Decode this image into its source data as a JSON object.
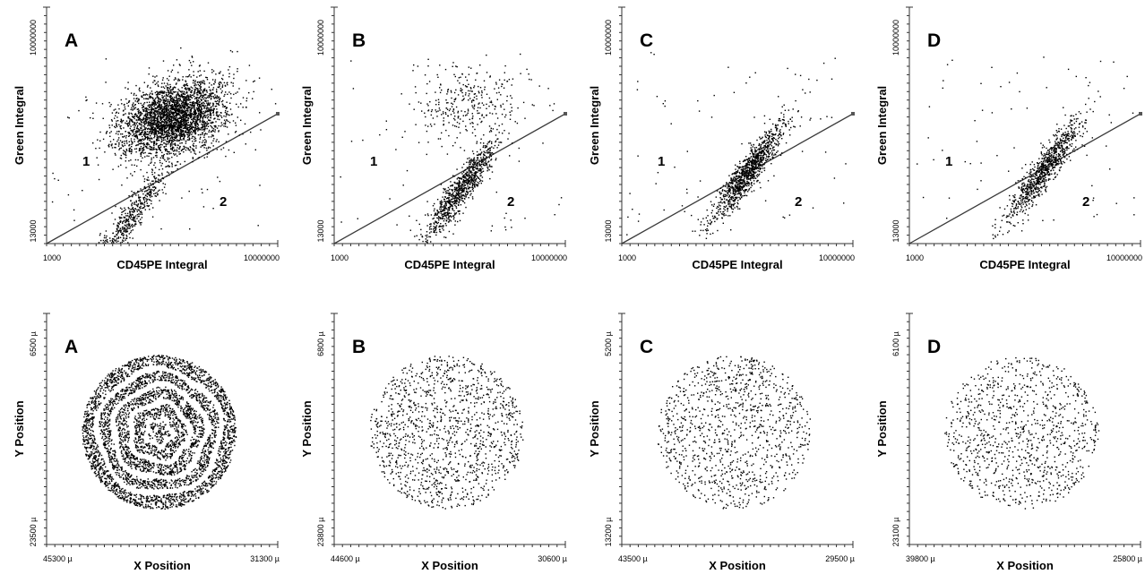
{
  "figure": {
    "panels": [
      {
        "letter": "A",
        "kind": "gate",
        "xlabel": "CD45PE Integral",
        "ylabel": "Green Integral",
        "x_ticks": [
          "1000",
          "10000000"
        ],
        "y_ticks": [
          "13000",
          "10000000"
        ],
        "region_labels": [
          "1",
          "2"
        ]
      },
      {
        "letter": "B",
        "kind": "gate",
        "xlabel": "CD45PE Integral",
        "ylabel": "Green Integral",
        "x_ticks": [
          "1000",
          "10000000"
        ],
        "y_ticks": [
          "13000",
          "10000000"
        ],
        "region_labels": [
          "1",
          "2"
        ]
      },
      {
        "letter": "C",
        "kind": "gate",
        "xlabel": "CD45PE Integral",
        "ylabel": "Green Integral",
        "x_ticks": [
          "1000",
          "10000000"
        ],
        "y_ticks": [
          "13000",
          "10000000"
        ],
        "region_labels": [
          "1",
          "2"
        ]
      },
      {
        "letter": "D",
        "kind": "gate",
        "xlabel": "CD45PE Integral",
        "ylabel": "Green Integral",
        "x_ticks": [
          "1000",
          "10000000"
        ],
        "y_ticks": [
          "13000",
          "10000000"
        ],
        "region_labels": [
          "1",
          "2"
        ]
      },
      {
        "letter": "A",
        "kind": "position",
        "xlabel": "X Position",
        "ylabel": "Y Position",
        "x_ticks": [
          "45300 µ",
          "31300 µ"
        ],
        "y_ticks": [
          "23500 µ",
          "6500 µ"
        ]
      },
      {
        "letter": "B",
        "kind": "position",
        "xlabel": "X Position",
        "ylabel": "Y Position",
        "x_ticks": [
          "44600 µ",
          "30600 µ"
        ],
        "y_ticks": [
          "23800 µ",
          "6800 µ"
        ]
      },
      {
        "letter": "C",
        "kind": "position",
        "xlabel": "X Position",
        "ylabel": "Y Position",
        "x_ticks": [
          "43500 µ",
          "29500 µ"
        ],
        "y_ticks": [
          "13200 µ",
          "5200 µ"
        ]
      },
      {
        "letter": "D",
        "kind": "position",
        "xlabel": "X Position",
        "ylabel": "Y Position",
        "x_ticks": [
          "39800 µ",
          "25800 µ"
        ],
        "y_ticks": [
          "23100 µ",
          "6100 µ"
        ]
      }
    ]
  },
  "chart_data": [
    {
      "type": "scatter",
      "panel": "A",
      "xlabel": "CD45PE Integral",
      "ylabel": "Green Integral",
      "x_scale": "log",
      "y_scale": "log",
      "xlim": [
        1000,
        10000000
      ],
      "ylim": [
        13000,
        10000000
      ],
      "gate_line": {
        "x": [
          1000,
          10000000
        ],
        "y": [
          13000,
          500000
        ]
      },
      "regions": {
        "1": "above gate line",
        "2": "below gate line"
      },
      "clusters": [
        {
          "region": "1",
          "center": {
            "x": 150000,
            "y": 450000
          },
          "count": 3200
        },
        {
          "region": "2",
          "center": {
            "x": 30000,
            "y": 30000
          },
          "count": 500
        }
      ]
    },
    {
      "type": "scatter",
      "panel": "B",
      "xlabel": "CD45PE Integral",
      "ylabel": "Green Integral",
      "x_scale": "log",
      "y_scale": "log",
      "xlim": [
        1000,
        10000000
      ],
      "ylim": [
        13000,
        10000000
      ],
      "gate_line": {
        "x": [
          1000,
          10000000
        ],
        "y": [
          13000,
          500000
        ]
      },
      "regions": {
        "1": "above gate line",
        "2": "below gate line"
      },
      "clusters": [
        {
          "region": "1",
          "center": {
            "x": 200000,
            "y": 700000
          },
          "count": 300
        },
        {
          "region": "2",
          "center": {
            "x": 150000,
            "y": 60000
          },
          "count": 900
        }
      ]
    },
    {
      "type": "scatter",
      "panel": "C",
      "xlabel": "CD45PE Integral",
      "ylabel": "Green Integral",
      "x_scale": "log",
      "y_scale": "log",
      "xlim": [
        1000,
        10000000
      ],
      "ylim": [
        13000,
        10000000
      ],
      "gate_line": {
        "x": [
          1000,
          10000000
        ],
        "y": [
          13000,
          500000
        ]
      },
      "regions": {
        "1": "above gate line",
        "2": "below gate line"
      },
      "clusters": [
        {
          "region": "2",
          "center": {
            "x": 150000,
            "y": 100000
          },
          "count": 1100
        }
      ]
    },
    {
      "type": "scatter",
      "panel": "D",
      "xlabel": "CD45PE Integral",
      "ylabel": "Green Integral",
      "x_scale": "log",
      "y_scale": "log",
      "xlim": [
        1000,
        10000000
      ],
      "ylim": [
        13000,
        10000000
      ],
      "gate_line": {
        "x": [
          1000,
          10000000
        ],
        "y": [
          13000,
          500000
        ]
      },
      "regions": {
        "1": "above gate line",
        "2": "below gate line"
      },
      "clusters": [
        {
          "region": "2",
          "center": {
            "x": 200000,
            "y": 100000
          },
          "count": 900
        }
      ]
    },
    {
      "type": "scatter",
      "panel": "A",
      "xlabel": "X Position",
      "ylabel": "Y Position",
      "xlim": [
        45300,
        31300
      ],
      "ylim": [
        23500,
        6500
      ],
      "pattern": "disc with concentric rings",
      "count": 4500
    },
    {
      "type": "scatter",
      "panel": "B",
      "xlabel": "X Position",
      "ylabel": "Y Position",
      "xlim": [
        44600,
        30600
      ],
      "ylim": [
        23800,
        6800
      ],
      "pattern": "uniform disc",
      "count": 1300
    },
    {
      "type": "scatter",
      "panel": "C",
      "xlabel": "X Position",
      "ylabel": "Y Position",
      "xlim": [
        43500,
        29500
      ],
      "ylim": [
        13200,
        5200
      ],
      "pattern": "uniform disc",
      "count": 1100
    },
    {
      "type": "scatter",
      "panel": "D",
      "xlabel": "X Position",
      "ylabel": "Y Position",
      "xlim": [
        39800,
        25800
      ],
      "ylim": [
        23100,
        6100
      ],
      "pattern": "uniform disc",
      "count": 1000
    }
  ]
}
